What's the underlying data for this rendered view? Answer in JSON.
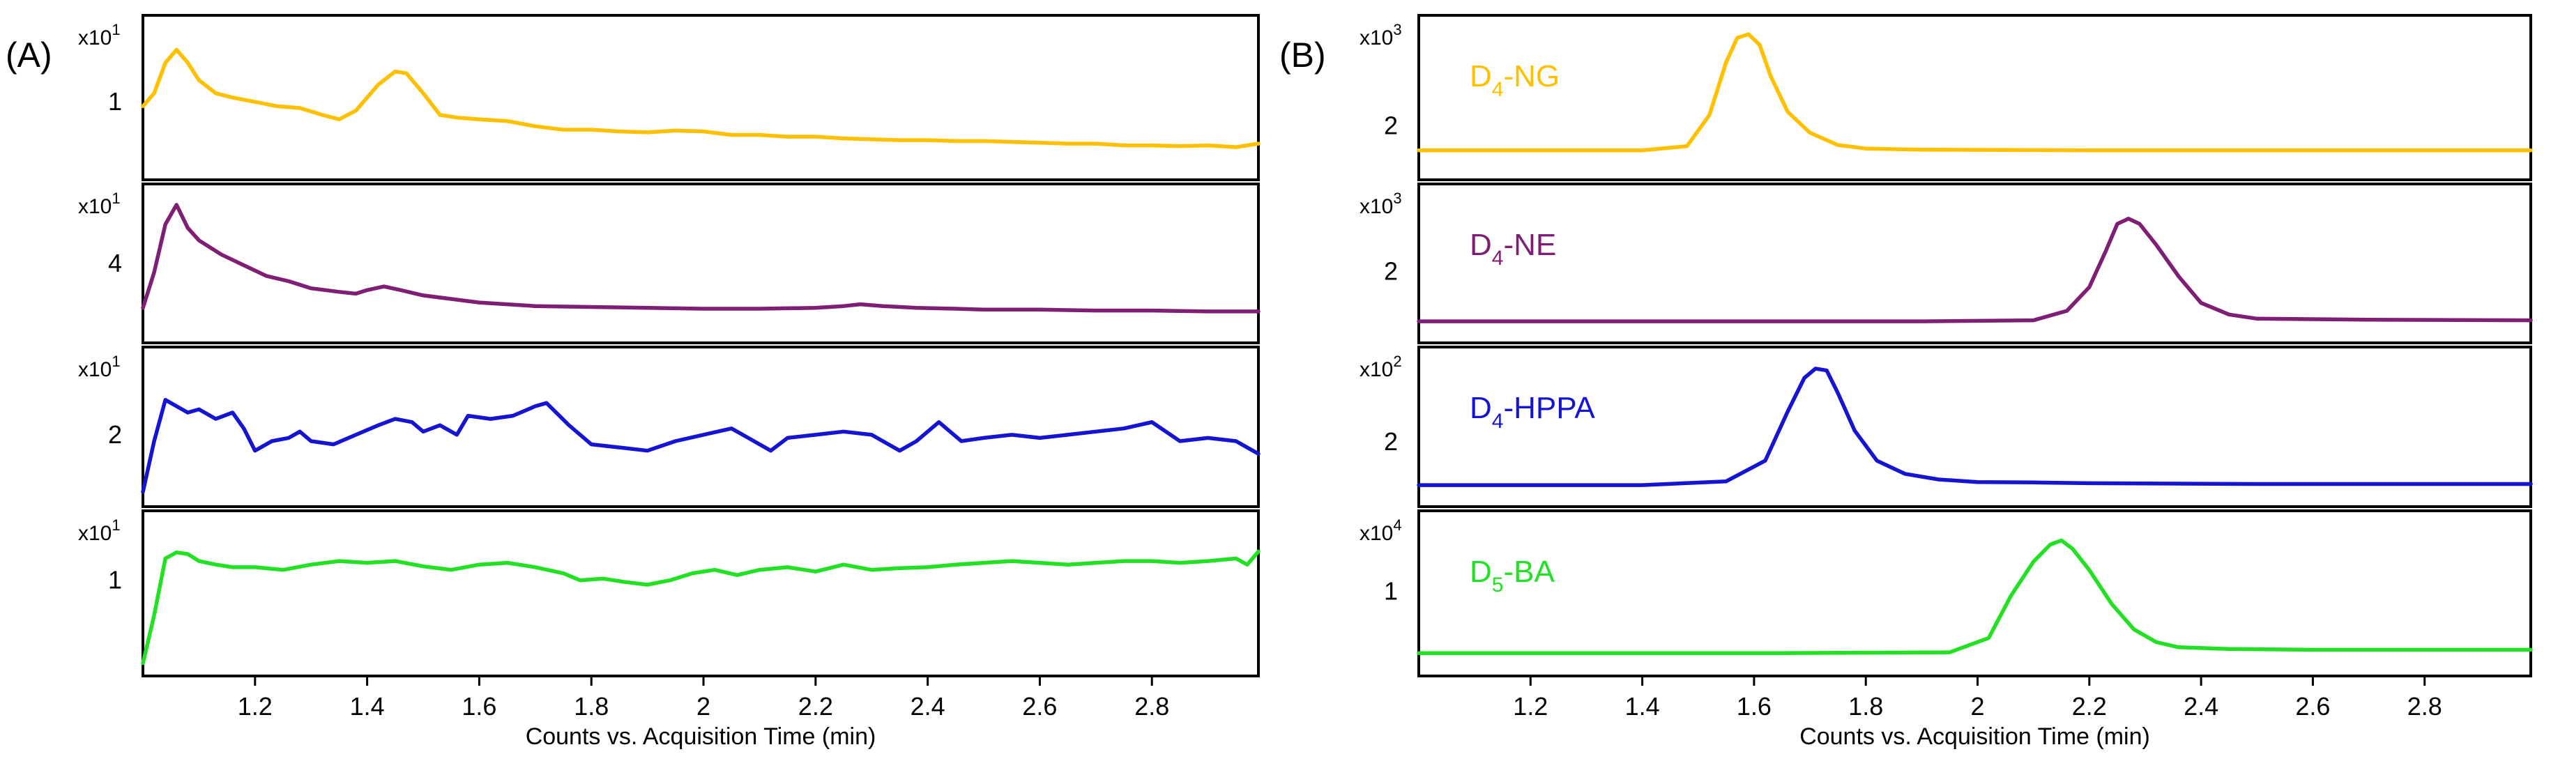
{
  "figure": {
    "panels": [
      {
        "label": "(A)"
      },
      {
        "label": "(B)"
      }
    ]
  },
  "chart_data": [
    {
      "type": "line",
      "panel": "(A)",
      "xlabel": "Counts vs. Acquisition Time (min)",
      "xlim": [
        1.0,
        2.99
      ],
      "x_ticks": [
        "1.2",
        "1.4",
        "1.6",
        "1.8",
        "2",
        "2.2",
        "2.4",
        "2.6",
        "2.8"
      ],
      "x_tick_values": [
        1.2,
        1.4,
        1.6,
        1.8,
        2.0,
        2.2,
        2.4,
        2.6,
        2.8
      ],
      "subplots": [
        {
          "color": "#FFC000",
          "multiplier": "x10",
          "multiplier_exp": "1",
          "y_ticks": [
            "1"
          ],
          "y_tick_values": [
            1
          ],
          "ylim": [
            0.2,
            1.9
          ],
          "x": [
            1.0,
            1.02,
            1.04,
            1.06,
            1.08,
            1.1,
            1.13,
            1.16,
            1.2,
            1.24,
            1.28,
            1.32,
            1.35,
            1.38,
            1.42,
            1.45,
            1.47,
            1.5,
            1.53,
            1.56,
            1.6,
            1.65,
            1.7,
            1.75,
            1.8,
            1.85,
            1.9,
            1.95,
            2.0,
            2.05,
            2.1,
            2.15,
            2.2,
            2.25,
            2.3,
            2.35,
            2.4,
            2.45,
            2.5,
            2.55,
            2.6,
            2.65,
            2.7,
            2.75,
            2.8,
            2.85,
            2.9,
            2.95,
            2.99
          ],
          "y": [
            0.95,
            1.1,
            1.45,
            1.6,
            1.45,
            1.25,
            1.1,
            1.05,
            1.0,
            0.95,
            0.93,
            0.85,
            0.8,
            0.9,
            1.2,
            1.35,
            1.33,
            1.1,
            0.85,
            0.82,
            0.8,
            0.78,
            0.72,
            0.68,
            0.68,
            0.66,
            0.65,
            0.67,
            0.66,
            0.62,
            0.62,
            0.6,
            0.6,
            0.58,
            0.57,
            0.56,
            0.56,
            0.55,
            0.55,
            0.54,
            0.53,
            0.52,
            0.52,
            0.5,
            0.5,
            0.49,
            0.5,
            0.48,
            0.52
          ]
        },
        {
          "color": "#7E1E74",
          "multiplier": "x10",
          "multiplier_exp": "1",
          "y_ticks": [
            "4"
          ],
          "y_tick_values": [
            4
          ],
          "ylim": [
            0,
            8
          ],
          "x": [
            1.0,
            1.02,
            1.04,
            1.06,
            1.08,
            1.1,
            1.14,
            1.18,
            1.22,
            1.26,
            1.3,
            1.35,
            1.38,
            1.4,
            1.43,
            1.46,
            1.5,
            1.55,
            1.6,
            1.7,
            1.8,
            1.9,
            2.0,
            2.1,
            2.2,
            2.25,
            2.28,
            2.32,
            2.38,
            2.45,
            2.5,
            2.6,
            2.7,
            2.8,
            2.9,
            2.99
          ],
          "y": [
            1.5,
            3.5,
            6.2,
            7.3,
            6.0,
            5.3,
            4.5,
            3.9,
            3.3,
            3.0,
            2.6,
            2.4,
            2.3,
            2.5,
            2.7,
            2.5,
            2.2,
            2.0,
            1.8,
            1.6,
            1.55,
            1.5,
            1.45,
            1.45,
            1.5,
            1.6,
            1.7,
            1.6,
            1.5,
            1.45,
            1.4,
            1.4,
            1.35,
            1.35,
            1.3,
            1.3
          ]
        },
        {
          "color": "#1414D2",
          "multiplier": "x10",
          "multiplier_exp": "1",
          "y_ticks": [
            "2"
          ],
          "y_tick_values": [
            2
          ],
          "ylim": [
            0,
            4.5
          ],
          "x": [
            1.0,
            1.02,
            1.04,
            1.06,
            1.08,
            1.1,
            1.13,
            1.16,
            1.18,
            1.2,
            1.23,
            1.26,
            1.28,
            1.3,
            1.34,
            1.38,
            1.42,
            1.45,
            1.48,
            1.5,
            1.53,
            1.56,
            1.58,
            1.62,
            1.66,
            1.7,
            1.72,
            1.76,
            1.8,
            1.85,
            1.9,
            1.95,
            2.0,
            2.05,
            2.08,
            2.12,
            2.15,
            2.2,
            2.25,
            2.3,
            2.35,
            2.38,
            2.42,
            2.46,
            2.5,
            2.55,
            2.6,
            2.65,
            2.7,
            2.75,
            2.8,
            2.85,
            2.9,
            2.95,
            2.99
          ],
          "y": [
            0.2,
            1.8,
            3.1,
            2.9,
            2.7,
            2.8,
            2.5,
            2.7,
            2.2,
            1.5,
            1.8,
            1.9,
            2.1,
            1.8,
            1.7,
            2.0,
            2.3,
            2.5,
            2.4,
            2.1,
            2.3,
            2.0,
            2.6,
            2.5,
            2.6,
            2.9,
            3.0,
            2.3,
            1.7,
            1.6,
            1.5,
            1.8,
            2.0,
            2.2,
            1.9,
            1.5,
            1.9,
            2.0,
            2.1,
            2.0,
            1.5,
            1.8,
            2.4,
            1.8,
            1.9,
            2.0,
            1.9,
            2.0,
            2.1,
            2.2,
            2.4,
            1.8,
            1.9,
            1.8,
            1.4
          ]
        },
        {
          "color": "#22E022",
          "multiplier": "x10",
          "multiplier_exp": "1",
          "y_ticks": [
            "1"
          ],
          "y_tick_values": [
            1
          ],
          "ylim": [
            0,
            1.7
          ],
          "x": [
            1.0,
            1.02,
            1.04,
            1.06,
            1.08,
            1.1,
            1.13,
            1.16,
            1.2,
            1.25,
            1.3,
            1.35,
            1.4,
            1.45,
            1.5,
            1.55,
            1.6,
            1.65,
            1.7,
            1.75,
            1.78,
            1.82,
            1.86,
            1.9,
            1.94,
            1.98,
            2.02,
            2.06,
            2.1,
            2.15,
            2.2,
            2.25,
            2.3,
            2.35,
            2.4,
            2.45,
            2.5,
            2.55,
            2.6,
            2.65,
            2.7,
            2.75,
            2.8,
            2.85,
            2.9,
            2.95,
            2.97,
            2.99
          ],
          "y": [
            0.05,
            0.6,
            1.25,
            1.32,
            1.3,
            1.22,
            1.18,
            1.15,
            1.15,
            1.12,
            1.18,
            1.22,
            1.2,
            1.22,
            1.16,
            1.12,
            1.18,
            1.2,
            1.15,
            1.08,
            1.0,
            1.02,
            0.98,
            0.95,
            1.0,
            1.08,
            1.12,
            1.06,
            1.12,
            1.15,
            1.1,
            1.18,
            1.12,
            1.14,
            1.15,
            1.18,
            1.2,
            1.22,
            1.2,
            1.18,
            1.2,
            1.22,
            1.22,
            1.2,
            1.22,
            1.25,
            1.18,
            1.33
          ]
        }
      ]
    },
    {
      "type": "line",
      "panel": "(B)",
      "xlabel": "Counts vs. Acquisition Time (min)",
      "xlim": [
        1.0,
        2.99
      ],
      "x_ticks": [
        "1.2",
        "1.4",
        "1.6",
        "1.8",
        "2",
        "2.2",
        "2.4",
        "2.6",
        "2.8"
      ],
      "x_tick_values": [
        1.2,
        1.4,
        1.6,
        1.8,
        2.0,
        2.2,
        2.4,
        2.6,
        2.8
      ],
      "subplots": [
        {
          "color": "#FFC000",
          "label_main": "D",
          "label_sub": "4",
          "label_rest": "-NG",
          "multiplier": "x10",
          "multiplier_exp": "3",
          "y_ticks": [
            "2"
          ],
          "y_tick_values": [
            2
          ],
          "ylim": [
            0.7,
            4.9
          ],
          "x": [
            1.0,
            1.4,
            1.48,
            1.52,
            1.55,
            1.57,
            1.59,
            1.61,
            1.63,
            1.66,
            1.7,
            1.75,
            1.8,
            1.9,
            2.2,
            2.6,
            2.99
          ],
          "y": [
            1.3,
            1.3,
            1.42,
            2.3,
            3.8,
            4.5,
            4.6,
            4.3,
            3.4,
            2.4,
            1.8,
            1.45,
            1.35,
            1.32,
            1.3,
            1.3,
            1.3
          ]
        },
        {
          "color": "#7E1E74",
          "label_main": "D",
          "label_sub": "4",
          "label_rest": "-NE",
          "multiplier": "x10",
          "multiplier_exp": "3",
          "y_ticks": [
            "2"
          ],
          "y_tick_values": [
            2
          ],
          "ylim": [
            0.8,
            3.5
          ],
          "x": [
            1.0,
            1.5,
            1.9,
            2.1,
            2.16,
            2.2,
            2.23,
            2.25,
            2.27,
            2.29,
            2.32,
            2.36,
            2.4,
            2.45,
            2.5,
            2.7,
            2.99
          ],
          "y": [
            1.05,
            1.05,
            1.05,
            1.07,
            1.25,
            1.7,
            2.4,
            2.9,
            3.0,
            2.9,
            2.5,
            1.9,
            1.4,
            1.18,
            1.1,
            1.08,
            1.07
          ]
        },
        {
          "color": "#1414D2",
          "label_main": "D",
          "label_sub": "4",
          "label_rest": "-HPPA",
          "multiplier": "x10",
          "multiplier_exp": "2",
          "y_ticks": [
            "2"
          ],
          "y_tick_values": [
            2
          ],
          "ylim": [
            0.5,
            4.3
          ],
          "x": [
            1.0,
            1.4,
            1.55,
            1.62,
            1.66,
            1.69,
            1.71,
            1.73,
            1.75,
            1.78,
            1.82,
            1.87,
            1.93,
            2.0,
            2.1,
            2.2,
            2.5,
            2.8,
            2.99
          ],
          "y": [
            0.85,
            0.85,
            0.95,
            1.5,
            2.8,
            3.7,
            3.95,
            3.9,
            3.3,
            2.3,
            1.5,
            1.15,
            1.0,
            0.93,
            0.92,
            0.9,
            0.88,
            0.88,
            0.88
          ]
        },
        {
          "color": "#22E022",
          "label_main": "D",
          "label_sub": "5",
          "label_rest": "-BA",
          "multiplier": "x10",
          "multiplier_exp": "4",
          "y_ticks": [
            "1"
          ],
          "y_tick_values": [
            1
          ],
          "ylim": [
            0.1,
            1.85
          ],
          "x": [
            1.0,
            1.6,
            1.95,
            2.02,
            2.06,
            2.1,
            2.13,
            2.15,
            2.17,
            2.2,
            2.24,
            2.28,
            2.32,
            2.36,
            2.45,
            2.6,
            2.99
          ],
          "y": [
            0.27,
            0.27,
            0.28,
            0.45,
            0.95,
            1.35,
            1.55,
            1.6,
            1.5,
            1.25,
            0.85,
            0.55,
            0.4,
            0.34,
            0.32,
            0.31,
            0.31
          ]
        }
      ]
    }
  ]
}
